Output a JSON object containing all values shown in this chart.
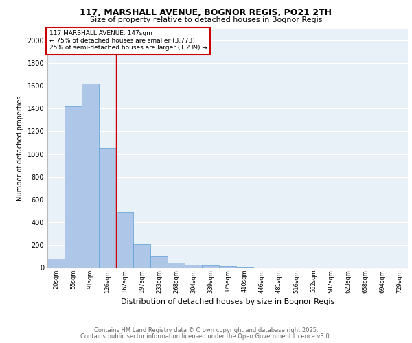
{
  "title1": "117, MARSHALL AVENUE, BOGNOR REGIS, PO21 2TH",
  "title2": "Size of property relative to detached houses in Bognor Regis",
  "xlabel": "Distribution of detached houses by size in Bognor Regis",
  "ylabel": "Number of detached properties",
  "categories": [
    "20sqm",
    "55sqm",
    "91sqm",
    "126sqm",
    "162sqm",
    "197sqm",
    "233sqm",
    "268sqm",
    "304sqm",
    "339sqm",
    "375sqm",
    "410sqm",
    "446sqm",
    "481sqm",
    "516sqm",
    "552sqm",
    "587sqm",
    "623sqm",
    "658sqm",
    "694sqm",
    "729sqm"
  ],
  "values": [
    80,
    1420,
    1620,
    1050,
    490,
    205,
    105,
    40,
    25,
    18,
    12,
    8,
    0,
    0,
    0,
    0,
    0,
    0,
    0,
    0,
    0
  ],
  "bar_color": "#aec6e8",
  "bar_edge_color": "#5a9fd4",
  "annotation_text": "117 MARSHALL AVENUE: 147sqm\n← 75% of detached houses are smaller (3,773)\n25% of semi-detached houses are larger (1,239) →",
  "vline_x": 3.5,
  "vline_color": "#cc0000",
  "annotation_box_color": "#cc0000",
  "annotation_text_color": "#000000",
  "ylim": [
    0,
    2100
  ],
  "yticks": [
    0,
    200,
    400,
    600,
    800,
    1000,
    1200,
    1400,
    1600,
    1800,
    2000
  ],
  "background_color": "#e8f0f8",
  "grid_color": "#ffffff",
  "footer1": "Contains HM Land Registry data © Crown copyright and database right 2025.",
  "footer2": "Contains public sector information licensed under the Open Government Licence v3.0."
}
